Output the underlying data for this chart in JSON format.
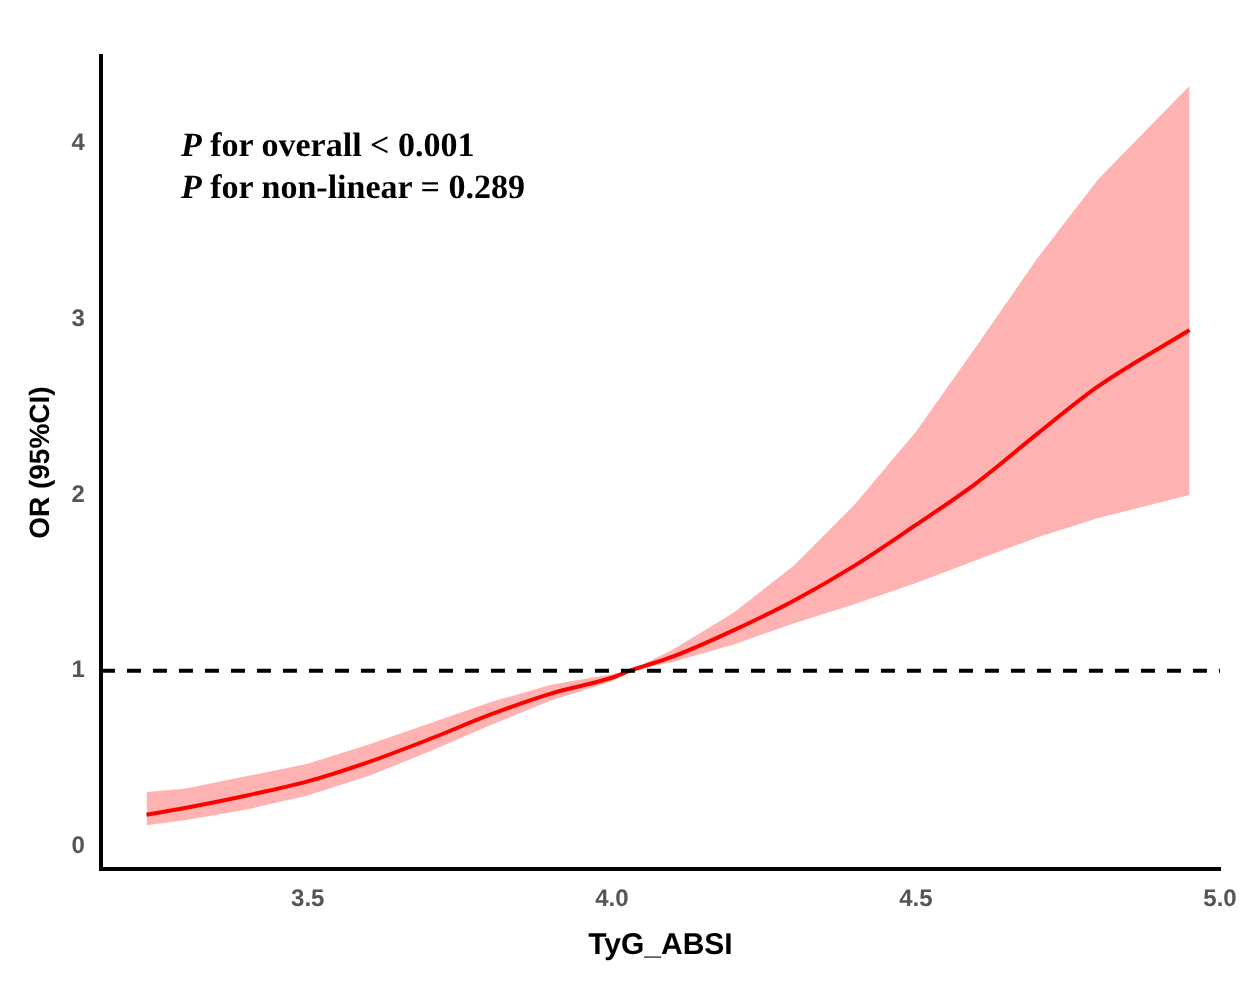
{
  "chart_data": {
    "type": "line",
    "xlabel": "TyG_ABSI",
    "ylabel": "OR (95%CI)",
    "annotations": [
      "P for overall < 0.001",
      "P for non-linear = 0.289"
    ],
    "x": [
      3.235,
      3.3,
      3.4,
      3.5,
      3.6,
      3.7,
      3.8,
      3.9,
      4.0,
      4.03,
      4.1,
      4.2,
      4.3,
      4.4,
      4.5,
      4.6,
      4.7,
      4.8,
      4.95
    ],
    "series": [
      {
        "color": "#ff0000",
        "values": [
          0.18,
          0.22,
          0.29,
          0.37,
          0.48,
          0.61,
          0.75,
          0.87,
          0.96,
          1.0,
          1.08,
          1.23,
          1.4,
          1.6,
          1.83,
          2.07,
          2.35,
          2.62,
          2.94
        ],
        "lower": [
          0.12,
          0.15,
          0.21,
          0.29,
          0.4,
          0.54,
          0.69,
          0.83,
          0.94,
          1.0,
          1.05,
          1.15,
          1.27,
          1.38,
          1.5,
          1.63,
          1.76,
          1.87,
          2.0
        ],
        "upper": [
          0.31,
          0.33,
          0.4,
          0.47,
          0.58,
          0.7,
          0.82,
          0.92,
          0.98,
          1.0,
          1.12,
          1.33,
          1.6,
          1.95,
          2.36,
          2.85,
          3.35,
          3.8,
          4.33
        ]
      }
    ],
    "xlim": [
      3.16,
      5.0
    ],
    "xticks": [
      3.5,
      {
        "value": 4,
        "label": "4.0"
      },
      4.5,
      {
        "value": 5,
        "label": "5.0"
      }
    ],
    "ylim": [
      -0.13,
      4.5
    ],
    "yticks": [
      0,
      1,
      2,
      3,
      4
    ],
    "ref_lines": [
      {
        "axis": "y",
        "value": 1,
        "color": "#000000",
        "line_style": "dashed"
      }
    ],
    "grid": false,
    "legend": false,
    "marker": "none",
    "line_style": "solid"
  }
}
